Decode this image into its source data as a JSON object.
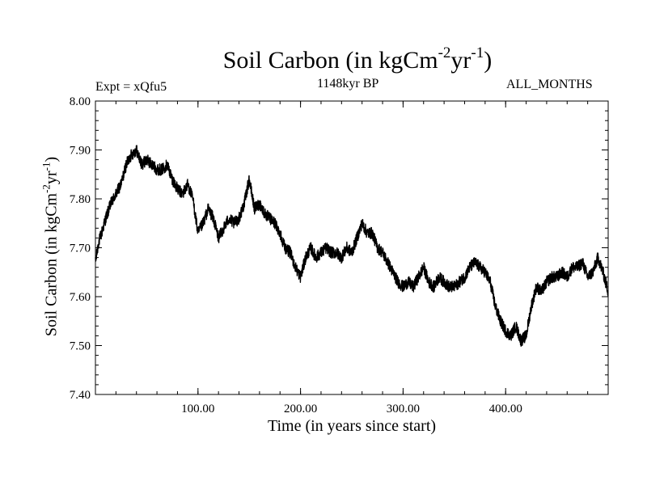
{
  "chart_data": {
    "type": "line",
    "title": "Soil Carbon (in kgCm",
    "title_exp1": "-2",
    "title_mid": "yr",
    "title_exp2": "-1",
    "title_end": ")",
    "subtitle_left": "Expt = xQfu5",
    "subtitle_center": "1148kyr BP",
    "subtitle_right": "ALL_MONTHS",
    "xlabel": "Time (in years since start)",
    "ylabel": "Soil Carbon (in kgCm",
    "ylabel_exp1": "-2",
    "ylabel_mid": "yr",
    "ylabel_exp2": "-1",
    "ylabel_end": ")",
    "xlim": [
      0,
      500
    ],
    "ylim": [
      7.4,
      8.0
    ],
    "xticks": [
      100,
      200,
      300,
      400
    ],
    "xtick_labels": [
      "100.00",
      "200.00",
      "300.00",
      "400.00"
    ],
    "yticks": [
      7.4,
      7.5,
      7.6,
      7.7,
      7.8,
      7.9,
      8.0
    ],
    "ytick_labels": [
      "7.40",
      "7.50",
      "7.60",
      "7.70",
      "7.80",
      "7.90",
      "8.00"
    ],
    "series": [
      {
        "name": "Soil Carbon",
        "color": "#000000",
        "x": [
          0,
          3,
          6,
          10,
          15,
          20,
          25,
          30,
          35,
          40,
          45,
          50,
          55,
          60,
          65,
          70,
          75,
          80,
          85,
          90,
          95,
          100,
          105,
          110,
          115,
          120,
          125,
          130,
          135,
          140,
          145,
          150,
          155,
          160,
          165,
          170,
          175,
          180,
          185,
          190,
          195,
          200,
          205,
          210,
          215,
          220,
          225,
          230,
          235,
          240,
          245,
          250,
          255,
          260,
          265,
          270,
          275,
          280,
          285,
          290,
          295,
          300,
          305,
          310,
          315,
          320,
          325,
          330,
          335,
          340,
          345,
          350,
          355,
          360,
          365,
          370,
          375,
          380,
          385,
          390,
          395,
          400,
          405,
          410,
          415,
          420,
          425,
          430,
          435,
          440,
          445,
          450,
          455,
          460,
          465,
          470,
          475,
          480,
          485,
          490,
          495,
          500
        ],
        "values": [
          7.67,
          7.71,
          7.73,
          7.76,
          7.79,
          7.81,
          7.83,
          7.87,
          7.89,
          7.9,
          7.87,
          7.88,
          7.87,
          7.86,
          7.86,
          7.87,
          7.84,
          7.82,
          7.81,
          7.83,
          7.8,
          7.73,
          7.75,
          7.78,
          7.76,
          7.72,
          7.74,
          7.76,
          7.75,
          7.76,
          7.79,
          7.84,
          7.78,
          7.79,
          7.77,
          7.76,
          7.75,
          7.73,
          7.7,
          7.69,
          7.66,
          7.64,
          7.68,
          7.7,
          7.68,
          7.69,
          7.7,
          7.69,
          7.69,
          7.68,
          7.7,
          7.69,
          7.72,
          7.75,
          7.73,
          7.73,
          7.7,
          7.69,
          7.67,
          7.65,
          7.63,
          7.62,
          7.63,
          7.62,
          7.64,
          7.66,
          7.63,
          7.62,
          7.64,
          7.63,
          7.62,
          7.62,
          7.63,
          7.64,
          7.66,
          7.67,
          7.66,
          7.65,
          7.63,
          7.58,
          7.55,
          7.53,
          7.52,
          7.54,
          7.51,
          7.52,
          7.58,
          7.62,
          7.61,
          7.63,
          7.64,
          7.64,
          7.65,
          7.64,
          7.66,
          7.66,
          7.67,
          7.64,
          7.65,
          7.68,
          7.65,
          7.61
        ]
      }
    ]
  }
}
